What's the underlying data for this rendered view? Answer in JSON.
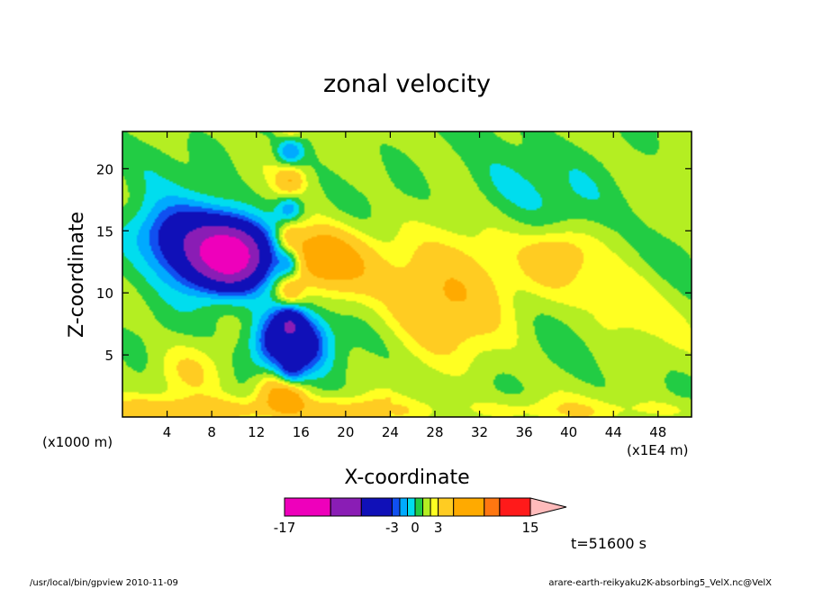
{
  "chart_data": {
    "type": "heatmap",
    "title": "zonal velocity",
    "xlabel": "X-coordinate",
    "ylabel": "Z-coordinate",
    "x_unit_left": "(x1000 m)",
    "x_unit_right": "(x1E4 m)",
    "xlim": [
      0,
      51
    ],
    "ylim": [
      0,
      23
    ],
    "x_ticks": [
      4,
      8,
      12,
      16,
      20,
      24,
      28,
      32,
      36,
      40,
      44,
      48
    ],
    "y_ticks": [
      5,
      10,
      15,
      20
    ],
    "time_label": "t=51600 s",
    "colorbar": {
      "min": -17,
      "max": 15,
      "levels": [
        -17,
        -11,
        -7,
        -3,
        -2,
        -1,
        0,
        1,
        2,
        3,
        5,
        9,
        11,
        15
      ],
      "colors": [
        "#ee00bb",
        "#8a1db5",
        "#1010b8",
        "#1050f0",
        "#00aaff",
        "#00ddee",
        "#22cc44",
        "#b4ee22",
        "#ffff22",
        "#ffcc22",
        "#ffaa00",
        "#ff7711",
        "#ff1a1a",
        "#ff8877",
        "#ffbbbb"
      ],
      "tick_labels": [
        "-17",
        "-3",
        "0",
        "3",
        "15"
      ],
      "tick_values": [
        -17,
        -3,
        0,
        3,
        15
      ]
    },
    "field_features": [
      {
        "x": 10,
        "z": 13,
        "value": -12,
        "r": 3
      },
      {
        "x": 7,
        "z": 13.5,
        "value": -8,
        "r": 4
      },
      {
        "x": 15,
        "z": 6,
        "value": -9,
        "r": 3
      },
      {
        "x": 17.5,
        "z": 13,
        "value": 6,
        "r": 2.5
      },
      {
        "x": 20,
        "z": 12,
        "value": 3,
        "r": 3
      },
      {
        "x": 28,
        "z": 9,
        "value": 3,
        "r": 5
      },
      {
        "x": 31,
        "z": 12,
        "value": 2,
        "r": 5
      },
      {
        "x": 39,
        "z": 13,
        "value": 3,
        "r": 3
      },
      {
        "x": 3,
        "z": 15,
        "value": -2,
        "r": 3
      },
      {
        "x": 6,
        "z": 4,
        "value": 2,
        "r": 3
      },
      {
        "x": 14,
        "z": 2,
        "value": 5,
        "r": 2
      },
      {
        "x": 22,
        "z": 20,
        "value": 0.5,
        "r": 3
      },
      {
        "x": 34,
        "z": 19,
        "value": -1.5,
        "r": 4
      },
      {
        "x": 40,
        "z": 16,
        "value": -1,
        "r": 4
      },
      {
        "x": 45,
        "z": 9,
        "value": 1.5,
        "r": 4
      },
      {
        "x": 2,
        "z": 21,
        "value": -0.5,
        "r": 3
      }
    ]
  },
  "footer": {
    "left": "/usr/local/bin/gpview  2010-11-09",
    "right": "arare-earth-reikyaku2K-absorbing5_VelX.nc@VelX"
  }
}
